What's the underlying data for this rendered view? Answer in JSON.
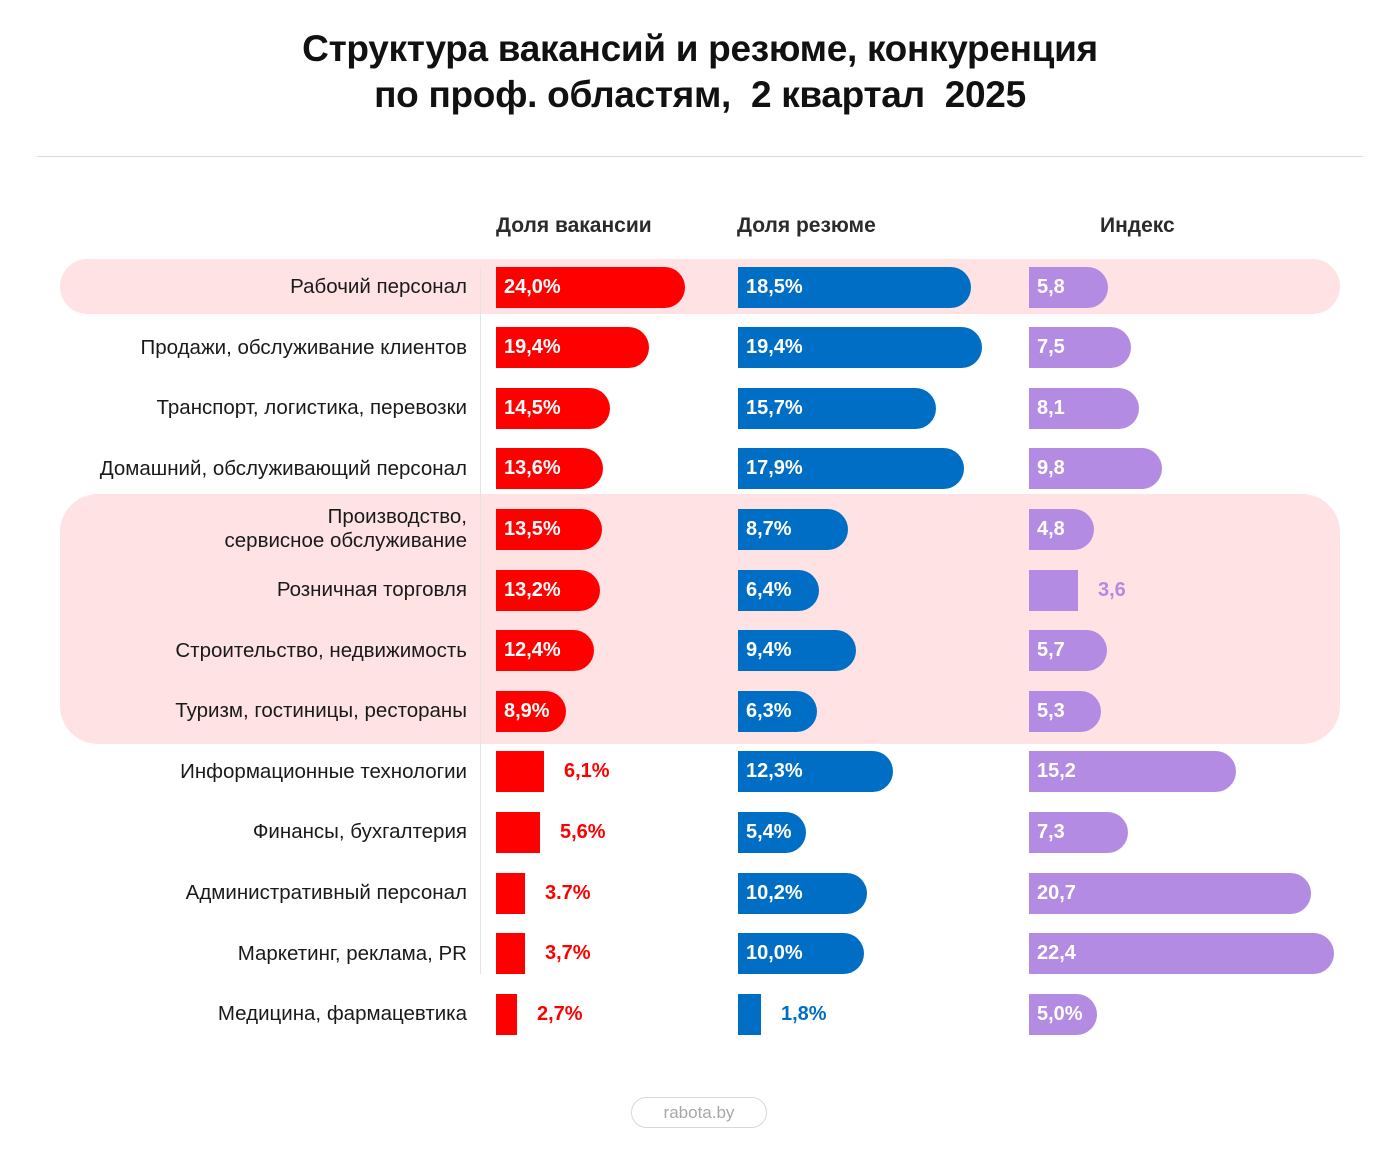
{
  "colors": {
    "vacancy": "#ff0000",
    "resume": "#006ec5",
    "index": "#b38be2",
    "highlight_band": "#ffe2e3"
  },
  "footer": {
    "brand": "rabota.by"
  },
  "chart_data": {
    "type": "bar",
    "orientation": "horizontal",
    "title": "Структура вакансий и резюме, конкуренция\nпо проф. областям,  2 квартал  2025",
    "columns": [
      "Доля вакансии",
      "Доля резюме",
      "Индекс"
    ],
    "categories": [
      "Рабочий персонал",
      "Продажи, обслуживание клиентов",
      "Транспорт, логистика, перевозки",
      "Домашний, обслуживающий персонал",
      "Производство,\nсервисное обслуживание",
      "Розничная торговля",
      "Строительство, недвижимость",
      "Туризм, гостиницы, рестораны",
      "Информационные технологии",
      "Финансы, бухгалтерия",
      "Административный персонал",
      "Маркетинг, реклама, PR",
      "Медицина, фармацевтика"
    ],
    "highlighted_groups": [
      [
        0
      ],
      [
        4,
        5,
        6,
        7
      ]
    ],
    "series": [
      {
        "name": "Доля вакансии",
        "unit": "%",
        "values": [
          24.0,
          19.4,
          14.5,
          13.6,
          13.5,
          13.2,
          12.4,
          8.9,
          6.1,
          5.6,
          3.7,
          3.7,
          2.7
        ],
        "labels": [
          "24,0%",
          "19,4%",
          "14,5%",
          "13,6%",
          "13,5%",
          "13,2%",
          "12,4%",
          "8,9%",
          "6,1%",
          "5,6%",
          "3.7%",
          "3,7%",
          "2,7%"
        ]
      },
      {
        "name": "Доля резюме",
        "unit": "%",
        "values": [
          18.5,
          19.4,
          15.7,
          17.9,
          8.7,
          6.4,
          9.4,
          6.3,
          12.3,
          5.4,
          10.2,
          10.0,
          1.8
        ],
        "labels": [
          "18,5%",
          "19,4%",
          "15,7%",
          "17,9%",
          "8,7%",
          "6,4%",
          "9,4%",
          "6,3%",
          "12,3%",
          "5,4%",
          "10,2%",
          "10,0%",
          "1,8%"
        ]
      },
      {
        "name": "Индекс",
        "unit": "",
        "values": [
          5.8,
          7.5,
          8.1,
          9.8,
          4.8,
          3.6,
          5.7,
          5.3,
          15.2,
          7.3,
          20.7,
          22.4,
          5.0
        ],
        "labels": [
          "5,8",
          "7,5",
          "8,1",
          "9,8",
          "4,8",
          "3,6",
          "5,7",
          "5,3",
          "15,2",
          "7,3",
          "20,7",
          "22,4",
          "5,0%"
        ]
      }
    ]
  }
}
